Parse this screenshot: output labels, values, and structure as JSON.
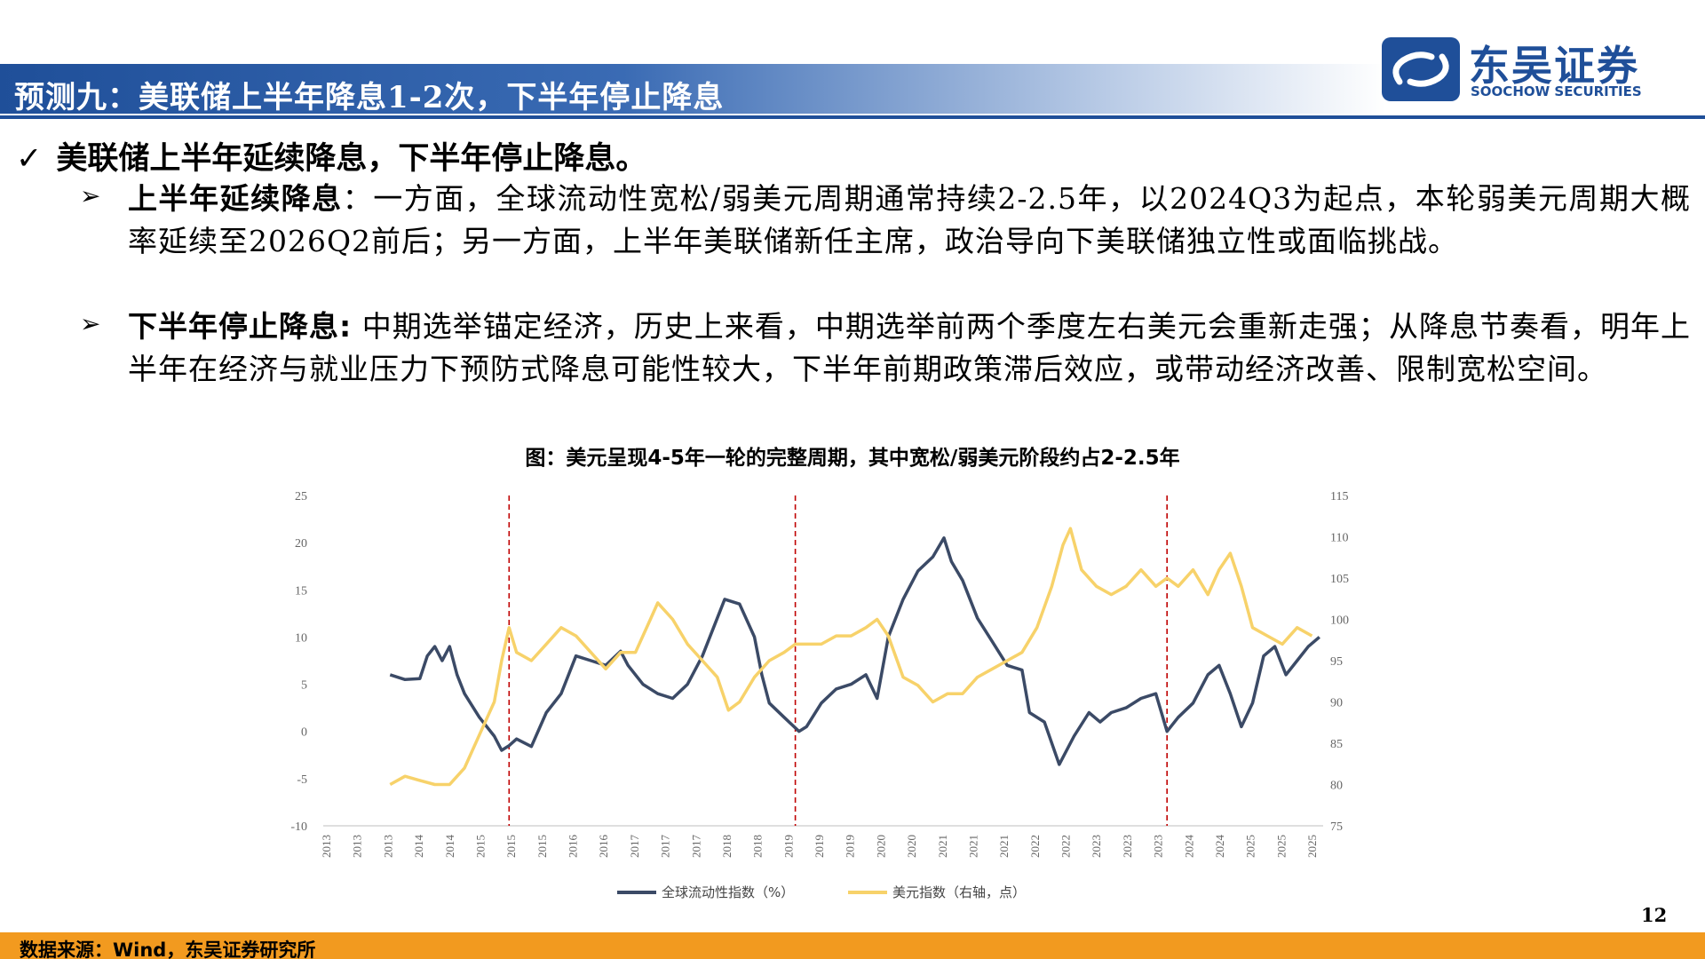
{
  "header": {
    "title": "预测九：美联储上半年降息1-2次，下半年停止降息"
  },
  "logo": {
    "cn": "东吴证券",
    "en": "SOOCHOW SECURITIES",
    "color": "#1f4f99"
  },
  "body": {
    "main_bullet_icon": "check-icon",
    "main_bullet": "美联储上半年延续降息，下半年停止降息。",
    "sub_bullet_icon": "arrow-right-icon",
    "items": [
      {
        "lead": "上半年延续降息",
        "text": "：一方面，全球流动性宽松/弱美元周期通常持续2-2.5年，以2024Q3为起点，本轮弱美元周期大概率延续至2026Q2前后；另一方面，上半年美联储新任主席，政治导向下美联储独立性或面临挑战。"
      },
      {
        "lead": "下半年停止降息:",
        "text": " 中期选举锚定经济，历史上来看，中期选举前两个季度左右美元会重新走强；从降息节奏看，明年上半年在经济与就业压力下预防式降息可能性较大，下半年前期政策滞后效应，或带动经济改善、限制宽松空间。"
      }
    ]
  },
  "figure": {
    "title": "图：美元呈现4-5年一轮的完整周期，其中宽松/弱美元阶段约占2-2.5年"
  },
  "chart_data": {
    "type": "line",
    "x_tick_labels": [
      "2013",
      "2013",
      "2013",
      "2014",
      "2014",
      "2015",
      "2015",
      "2015",
      "2016",
      "2016",
      "2017",
      "2017",
      "2017",
      "2018",
      "2018",
      "2019",
      "2019",
      "2019",
      "2020",
      "2020",
      "2021",
      "2021",
      "2021",
      "2022",
      "2022",
      "2023",
      "2023",
      "2023",
      "2024",
      "2024",
      "2025",
      "2025",
      "2025"
    ],
    "x_range": [
      2012.5,
      2025.95
    ],
    "y_left": {
      "min": -10,
      "max": 25,
      "ticks": [
        -10,
        -5,
        0,
        5,
        10,
        15,
        20,
        25
      ]
    },
    "y_right": {
      "min": 75,
      "max": 115,
      "ticks": [
        75,
        80,
        85,
        90,
        95,
        100,
        105,
        110,
        115
      ]
    },
    "vertical_markers": [
      2015.0,
      2018.85,
      2023.85
    ],
    "marker_color": "#c00000",
    "series": [
      {
        "name": "全球流动性指数（%）",
        "axis": "left",
        "color": "#3b4a66",
        "points": [
          [
            2013.4,
            6
          ],
          [
            2013.6,
            5.5
          ],
          [
            2013.8,
            5.6
          ],
          [
            2013.9,
            8
          ],
          [
            2014.0,
            9
          ],
          [
            2014.1,
            7.5
          ],
          [
            2014.2,
            9
          ],
          [
            2014.3,
            6
          ],
          [
            2014.4,
            4
          ],
          [
            2014.6,
            1.5
          ],
          [
            2014.8,
            -0.5
          ],
          [
            2014.9,
            -2
          ],
          [
            2015.0,
            -1.5
          ],
          [
            2015.1,
            -0.8
          ],
          [
            2015.3,
            -1.6
          ],
          [
            2015.5,
            2
          ],
          [
            2015.7,
            4
          ],
          [
            2015.9,
            8
          ],
          [
            2016.1,
            7.5
          ],
          [
            2016.3,
            7
          ],
          [
            2016.5,
            8.5
          ],
          [
            2016.6,
            7
          ],
          [
            2016.8,
            5
          ],
          [
            2017.0,
            4
          ],
          [
            2017.2,
            3.5
          ],
          [
            2017.4,
            5
          ],
          [
            2017.6,
            8
          ],
          [
            2017.8,
            12
          ],
          [
            2017.9,
            14
          ],
          [
            2018.1,
            13.5
          ],
          [
            2018.3,
            10
          ],
          [
            2018.4,
            6
          ],
          [
            2018.5,
            3
          ],
          [
            2018.7,
            1.5
          ],
          [
            2018.9,
            0
          ],
          [
            2019.0,
            0.5
          ],
          [
            2019.2,
            3
          ],
          [
            2019.4,
            4.5
          ],
          [
            2019.6,
            5
          ],
          [
            2019.8,
            6
          ],
          [
            2019.95,
            3.5
          ],
          [
            2020.1,
            10
          ],
          [
            2020.3,
            14
          ],
          [
            2020.5,
            17
          ],
          [
            2020.7,
            18.5
          ],
          [
            2020.85,
            20.5
          ],
          [
            2020.95,
            18
          ],
          [
            2021.1,
            16
          ],
          [
            2021.3,
            12
          ],
          [
            2021.5,
            9.5
          ],
          [
            2021.7,
            7
          ],
          [
            2021.9,
            6.5
          ],
          [
            2022.0,
            2
          ],
          [
            2022.2,
            1
          ],
          [
            2022.4,
            -3.5
          ],
          [
            2022.6,
            -0.5
          ],
          [
            2022.8,
            2
          ],
          [
            2022.95,
            1
          ],
          [
            2023.1,
            2
          ],
          [
            2023.3,
            2.5
          ],
          [
            2023.5,
            3.5
          ],
          [
            2023.7,
            4
          ],
          [
            2023.85,
            0
          ],
          [
            2024.0,
            1.5
          ],
          [
            2024.2,
            3
          ],
          [
            2024.4,
            6
          ],
          [
            2024.55,
            7
          ],
          [
            2024.7,
            4
          ],
          [
            2024.85,
            0.5
          ],
          [
            2025.0,
            3
          ],
          [
            2025.15,
            8
          ],
          [
            2025.3,
            9
          ],
          [
            2025.45,
            6
          ],
          [
            2025.6,
            7.5
          ],
          [
            2025.75,
            9
          ],
          [
            2025.9,
            10
          ]
        ]
      },
      {
        "name": "美元指数（右轴，点）",
        "axis": "right",
        "color": "#f7d26a",
        "points": [
          [
            2013.4,
            80
          ],
          [
            2013.6,
            81
          ],
          [
            2013.8,
            80.5
          ],
          [
            2014.0,
            80
          ],
          [
            2014.2,
            80
          ],
          [
            2014.4,
            82
          ],
          [
            2014.6,
            86
          ],
          [
            2014.8,
            90
          ],
          [
            2014.9,
            95
          ],
          [
            2015.0,
            99
          ],
          [
            2015.1,
            96
          ],
          [
            2015.3,
            95
          ],
          [
            2015.5,
            97
          ],
          [
            2015.7,
            99
          ],
          [
            2015.9,
            98
          ],
          [
            2016.1,
            96
          ],
          [
            2016.3,
            94
          ],
          [
            2016.5,
            96
          ],
          [
            2016.7,
            96
          ],
          [
            2016.9,
            100
          ],
          [
            2017.0,
            102
          ],
          [
            2017.2,
            100
          ],
          [
            2017.4,
            97
          ],
          [
            2017.6,
            95
          ],
          [
            2017.8,
            93
          ],
          [
            2017.95,
            89
          ],
          [
            2018.1,
            90
          ],
          [
            2018.3,
            93
          ],
          [
            2018.5,
            95
          ],
          [
            2018.7,
            96
          ],
          [
            2018.85,
            97
          ],
          [
            2019.0,
            97
          ],
          [
            2019.2,
            97
          ],
          [
            2019.4,
            98
          ],
          [
            2019.6,
            98
          ],
          [
            2019.8,
            99
          ],
          [
            2019.95,
            100
          ],
          [
            2020.1,
            98
          ],
          [
            2020.3,
            93
          ],
          [
            2020.5,
            92
          ],
          [
            2020.7,
            90
          ],
          [
            2020.9,
            91
          ],
          [
            2021.1,
            91
          ],
          [
            2021.3,
            93
          ],
          [
            2021.5,
            94
          ],
          [
            2021.7,
            95
          ],
          [
            2021.9,
            96
          ],
          [
            2022.1,
            99
          ],
          [
            2022.3,
            104
          ],
          [
            2022.45,
            109
          ],
          [
            2022.55,
            111
          ],
          [
            2022.7,
            106
          ],
          [
            2022.9,
            104
          ],
          [
            2023.1,
            103
          ],
          [
            2023.3,
            104
          ],
          [
            2023.5,
            106
          ],
          [
            2023.7,
            104
          ],
          [
            2023.85,
            105
          ],
          [
            2024.0,
            104
          ],
          [
            2024.2,
            106
          ],
          [
            2024.4,
            103
          ],
          [
            2024.55,
            106
          ],
          [
            2024.7,
            108
          ],
          [
            2024.85,
            104
          ],
          [
            2025.0,
            99
          ],
          [
            2025.2,
            98
          ],
          [
            2025.4,
            97
          ],
          [
            2025.6,
            99
          ],
          [
            2025.8,
            98
          ]
        ]
      }
    ]
  },
  "page_number": "12",
  "footer": {
    "source": "数据来源：Wind，东吴证券研究所",
    "bar_color": "#f29a1f"
  }
}
